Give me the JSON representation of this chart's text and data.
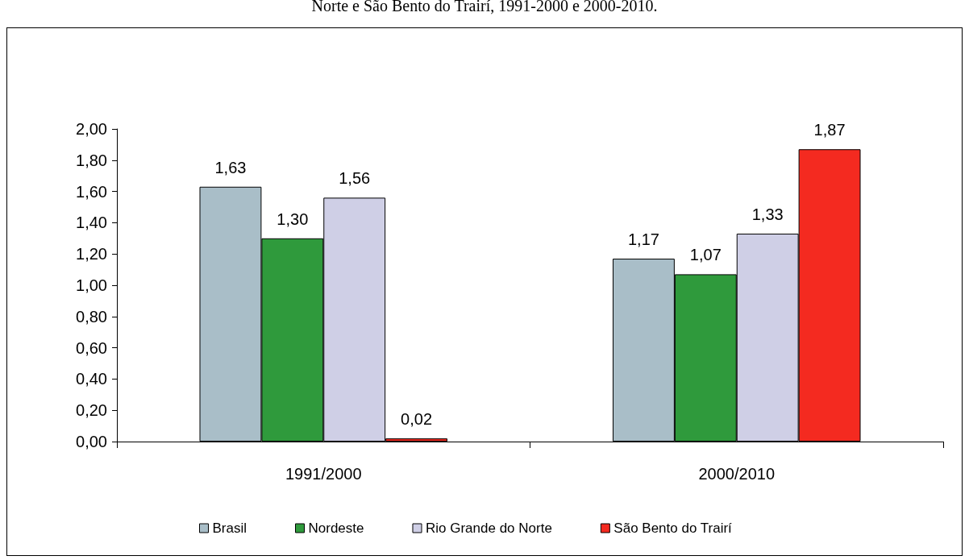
{
  "chart_data": {
    "type": "bar",
    "title": "Norte e São Bento do Trairí, 1991-2000 e 2000-2010.",
    "categories": [
      "1991/2000",
      "2000/2010"
    ],
    "series": [
      {
        "name": "Brasil",
        "color": "#a9bec8",
        "values": [
          1.63,
          1.17
        ],
        "value_labels": [
          "1,63",
          "1,17"
        ]
      },
      {
        "name": "Nordeste",
        "color": "#2f9a3c",
        "values": [
          1.3,
          1.07
        ],
        "value_labels": [
          "1,30",
          "1,07"
        ]
      },
      {
        "name": "Rio Grande do Norte",
        "color": "#cfcfe6",
        "values": [
          1.56,
          1.33
        ],
        "value_labels": [
          "1,56",
          "1,33"
        ]
      },
      {
        "name": "São Bento do Trairí",
        "color": "#f42a20",
        "values": [
          0.02,
          1.87
        ],
        "value_labels": [
          "0,02",
          "1,87"
        ]
      }
    ],
    "ylim": [
      0,
      2
    ],
    "yticks": [
      {
        "value": 0,
        "label": "0,00"
      },
      {
        "value": 0.2,
        "label": "0,20"
      },
      {
        "value": 0.4,
        "label": "0,40"
      },
      {
        "value": 0.6,
        "label": "0,60"
      },
      {
        "value": 0.8,
        "label": "0,80"
      },
      {
        "value": 1,
        "label": "1,00"
      },
      {
        "value": 1.2,
        "label": "1,20"
      },
      {
        "value": 1.4,
        "label": "1,40"
      },
      {
        "value": 1.6,
        "label": "1,60"
      },
      {
        "value": 1.8,
        "label": "1,80"
      },
      {
        "value": 2,
        "label": "2,00"
      }
    ],
    "grid": false,
    "legend": "bottom"
  }
}
